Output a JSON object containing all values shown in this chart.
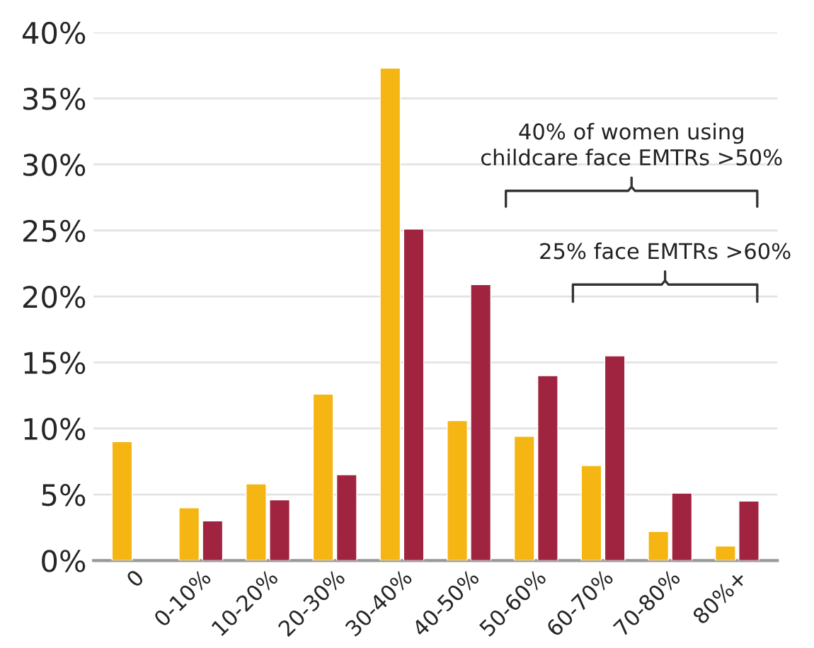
{
  "chart_data": {
    "type": "bar",
    "categories": [
      "0",
      "0-10%",
      "10-20%",
      "20-30%",
      "30-40%",
      "40-50%",
      "50-60%",
      "60-70%",
      "70-80%",
      "80%+"
    ],
    "series": [
      {
        "color": "#f5b512",
        "values": [
          9.0,
          4.0,
          5.8,
          12.6,
          37.3,
          10.6,
          9.4,
          7.2,
          2.2,
          1.1
        ]
      },
      {
        "color": "#a0243f",
        "values": [
          null,
          3.0,
          4.6,
          6.5,
          25.1,
          20.9,
          14.0,
          15.5,
          5.1,
          4.5
        ]
      }
    ],
    "ylim": [
      0,
      40
    ],
    "yticks": [
      {
        "value": 0,
        "label": "0%"
      },
      {
        "value": 5,
        "label": "5%"
      },
      {
        "value": 10,
        "label": "10%"
      },
      {
        "value": 15,
        "label": "15%"
      },
      {
        "value": 20,
        "label": "20%"
      },
      {
        "value": 25,
        "label": "25%"
      },
      {
        "value": 30,
        "label": "30%"
      },
      {
        "value": 35,
        "label": "35%"
      },
      {
        "value": 40,
        "label": "40%"
      }
    ],
    "grid": "y",
    "legend": false,
    "annotations": [
      "40% of women using\nchildcare face EMTRs >50%",
      "25% face EMTRs >60%"
    ]
  }
}
